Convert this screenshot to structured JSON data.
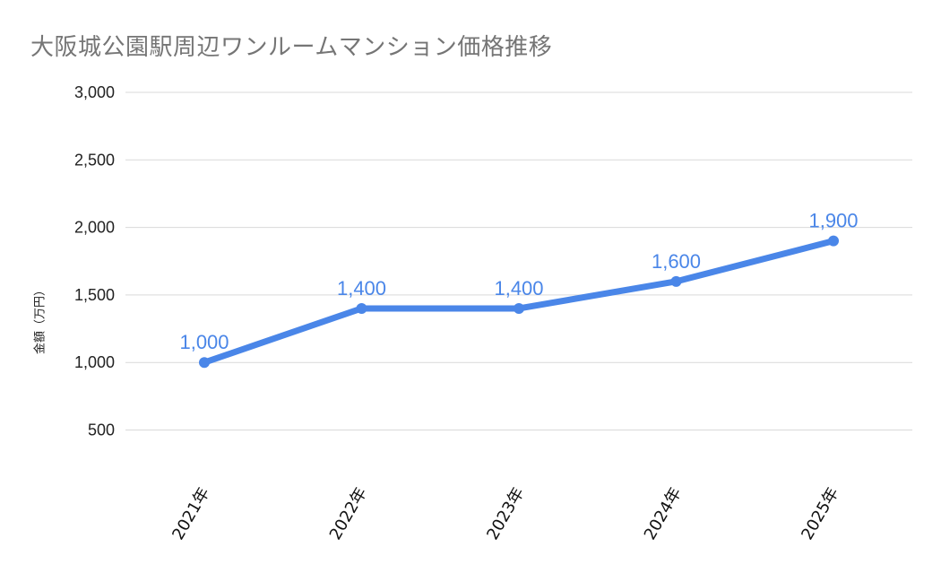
{
  "chart_data": {
    "type": "line",
    "title": "大阪城公園駅周辺ワンルームマンション価格推移",
    "xlabel": "",
    "ylabel": "金額（万円）",
    "categories": [
      "2021年",
      "2022年",
      "2023年",
      "2024年",
      "2025年"
    ],
    "series": [
      {
        "values": [
          1000,
          1400,
          1400,
          1600,
          1900
        ],
        "data_labels": [
          "1,000",
          "1,400",
          "1,400",
          "1,600",
          "1,900"
        ],
        "color": "#4a86e8"
      }
    ],
    "ylim": [
      0,
      3000
    ],
    "yticks": [
      500,
      1000,
      1500,
      2000,
      2500,
      3000
    ],
    "ytick_labels": [
      "500",
      "1,000",
      "1,500",
      "2,000",
      "2,500",
      "3,000"
    ],
    "grid": true,
    "gridline_color": "#d9d9d9",
    "legend": "none"
  }
}
